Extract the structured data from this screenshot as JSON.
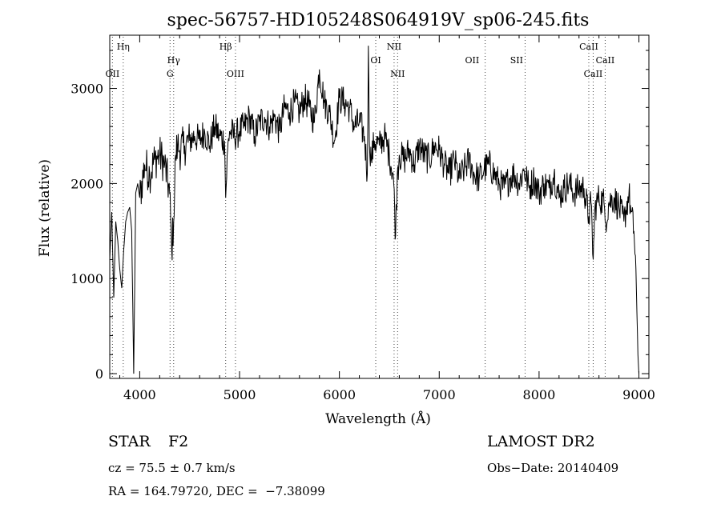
{
  "chart_data": {
    "type": "line",
    "title": "spec-56757-HD105248S064919V_sp06-245.fits",
    "xlabel": "Wavelength (Å)",
    "ylabel": "Flux (relative)",
    "xlim": [
      3700,
      9100
    ],
    "ylim": [
      -50,
      3560
    ],
    "x_ticks": [
      4000,
      5000,
      6000,
      7000,
      8000,
      9000
    ],
    "y_ticks": [
      0,
      1000,
      2000,
      3000
    ],
    "grid": false,
    "legend": "none",
    "series": [
      {
        "x": [
          3700,
          3720,
          3740,
          3760,
          3780,
          3800,
          3820,
          3840,
          3860,
          3880,
          3900,
          3920,
          3940,
          3960,
          3980,
          4000,
          4050,
          4100,
          4150,
          4200,
          4250,
          4300,
          4320,
          4340,
          4360,
          4380,
          4400,
          4450,
          4500,
          4550,
          4600,
          4650,
          4700,
          4750,
          4800,
          4850,
          4861,
          4880,
          4900,
          4950,
          5000,
          5050,
          5100,
          5150,
          5200,
          5250,
          5300,
          5350,
          5400,
          5450,
          5500,
          5550,
          5600,
          5650,
          5700,
          5750,
          5800,
          5850,
          5900,
          5950,
          6000,
          6050,
          6100,
          6150,
          6200,
          6250,
          6280,
          6290,
          6300,
          6320,
          6350,
          6400,
          6450,
          6500,
          6540,
          6563,
          6580,
          6600,
          6650,
          6700,
          6750,
          6800,
          6850,
          6900,
          6950,
          7000,
          7050,
          7100,
          7150,
          7200,
          7250,
          7300,
          7350,
          7400,
          7450,
          7500,
          7550,
          7600,
          7650,
          7700,
          7750,
          7800,
          7850,
          7900,
          7950,
          8000,
          8050,
          8100,
          8150,
          8200,
          8250,
          8300,
          8350,
          8400,
          8450,
          8498,
          8520,
          8542,
          8560,
          8600,
          8650,
          8662,
          8700,
          8750,
          8800,
          8850,
          8900,
          8920,
          8950,
          8970,
          8990,
          9000
        ],
        "y": [
          1200,
          1700,
          800,
          1600,
          1400,
          1100,
          900,
          1300,
          1600,
          1700,
          1750,
          1500,
          0,
          1900,
          2000,
          1850,
          2200,
          2100,
          2250,
          2300,
          2200,
          1900,
          1300,
          1600,
          2300,
          2400,
          2350,
          2400,
          2450,
          2500,
          2450,
          2550,
          2400,
          2600,
          2500,
          2450,
          1850,
          2350,
          2550,
          2500,
          2550,
          2600,
          2700,
          2500,
          2650,
          2700,
          2600,
          2700,
          2550,
          2800,
          2750,
          2850,
          2750,
          2900,
          2800,
          2650,
          3200,
          2850,
          2750,
          2450,
          2900,
          2850,
          2800,
          2600,
          2650,
          2500,
          2100,
          3450,
          2450,
          2250,
          2450,
          2400,
          2500,
          2300,
          2100,
          1450,
          2100,
          2300,
          2250,
          2350,
          2200,
          2400,
          2300,
          2250,
          2400,
          2350,
          2200,
          2100,
          2250,
          2050,
          2150,
          2250,
          2100,
          2050,
          2150,
          2200,
          2100,
          2000,
          1950,
          2050,
          2100,
          2000,
          2150,
          1950,
          2050,
          1900,
          2000,
          1950,
          2100,
          1850,
          1950,
          2000,
          1900,
          1950,
          1950,
          1650,
          1800,
          1200,
          1750,
          1850,
          1800,
          1600,
          1800,
          1850,
          1750,
          1600,
          1900,
          1700,
          1500,
          1100,
          200,
          0
        ]
      }
    ],
    "annotations": [
      {
        "label": "Hη",
        "x": 3835,
        "row": 1
      },
      {
        "label": "OII",
        "x": 3727,
        "row": 3
      },
      {
        "label": "Hγ",
        "x": 4340,
        "row": 2
      },
      {
        "label": "G",
        "x": 4304,
        "row": 3
      },
      {
        "label": "Hβ",
        "x": 4861,
        "row": 1
      },
      {
        "label": "OIII",
        "x": 4959,
        "row": 3
      },
      {
        "label": "NII",
        "x": 6548,
        "row": 1
      },
      {
        "label": "OI",
        "x": 6364,
        "row": 2
      },
      {
        "label": "NII",
        "x": 6583,
        "row": 3
      },
      {
        "label": "OII",
        "x": 7330,
        "row": 2
      },
      {
        "label": "SII",
        "x": 7775,
        "row": 2
      },
      {
        "label": "CaII",
        "x": 8498,
        "row": 1
      },
      {
        "label": "CaII",
        "x": 8662,
        "row": 2
      },
      {
        "label": "CaII",
        "x": 8542,
        "row": 3
      }
    ],
    "line_markers": [
      3727,
      3835,
      4304,
      4340,
      4861,
      4959,
      6364,
      6548,
      6583,
      7460,
      7860,
      8498,
      8542,
      8662
    ]
  },
  "info": {
    "object_class": "STAR",
    "subclass": "F2",
    "survey": "LAMOST DR2",
    "redshift": "cz = 75.5 ± 0.7 km/s",
    "obs_date": "Obs−Date: 20140409",
    "coords": "RA = 164.79720, DEC =  −7.38099"
  }
}
